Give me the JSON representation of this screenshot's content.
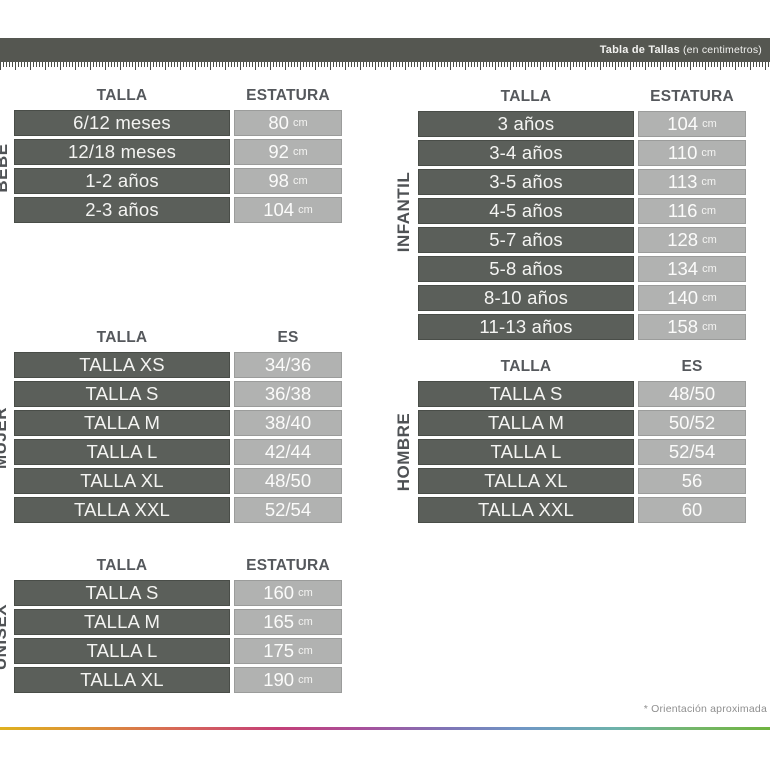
{
  "header": {
    "title": "Tabla de Tallas",
    "subtitle": "(en centimetros)"
  },
  "footnote": "* Orientación aproximada",
  "colors": {
    "topbar_bg": "#555751",
    "dark_cell_bg": "#5b5f5a",
    "light_cell_bg": "#b1b2b1",
    "cell_text": "#f4f4f2",
    "header_text": "#55585c",
    "rainbow_left": "#dfb11e",
    "rainbow_right": "#6fb43f"
  },
  "tables": [
    {
      "id": "bebe",
      "label": "BEBE",
      "col1": "TALLA",
      "col2": "ESTATURA",
      "rows": [
        {
          "size": "6/12 meses",
          "value": "80",
          "unit": "cm"
        },
        {
          "size": "12/18 meses",
          "value": "92",
          "unit": "cm"
        },
        {
          "size": "1-2 años",
          "value": "98",
          "unit": "cm"
        },
        {
          "size": "2-3 años",
          "value": "104",
          "unit": "cm"
        }
      ]
    },
    {
      "id": "infantil",
      "label": "INFANTIL",
      "col1": "TALLA",
      "col2": "ESTATURA",
      "rows": [
        {
          "size": "3 años",
          "value": "104",
          "unit": "cm"
        },
        {
          "size": "3-4 años",
          "value": "110",
          "unit": "cm"
        },
        {
          "size": "3-5 años",
          "value": "113",
          "unit": "cm"
        },
        {
          "size": "4-5 años",
          "value": "116",
          "unit": "cm"
        },
        {
          "size": "5-7 años",
          "value": "128",
          "unit": "cm"
        },
        {
          "size": "5-8 años",
          "value": "134",
          "unit": "cm"
        },
        {
          "size": "8-10 años",
          "value": "140",
          "unit": "cm"
        },
        {
          "size": "11-13 años",
          "value": "158",
          "unit": "cm"
        }
      ]
    },
    {
      "id": "mujer",
      "label": "MUJER",
      "col1": "TALLA",
      "col2": "ES",
      "rows": [
        {
          "size": "TALLA XS",
          "value": "34/36",
          "unit": ""
        },
        {
          "size": "TALLA S",
          "value": "36/38",
          "unit": ""
        },
        {
          "size": "TALLA M",
          "value": "38/40",
          "unit": ""
        },
        {
          "size": "TALLA L",
          "value": "42/44",
          "unit": ""
        },
        {
          "size": "TALLA XL",
          "value": "48/50",
          "unit": ""
        },
        {
          "size": "TALLA XXL",
          "value": "52/54",
          "unit": ""
        }
      ]
    },
    {
      "id": "hombre",
      "label": "HOMBRE",
      "col1": "TALLA",
      "col2": "ES",
      "rows": [
        {
          "size": "TALLA S",
          "value": "48/50",
          "unit": ""
        },
        {
          "size": "TALLA M",
          "value": "50/52",
          "unit": ""
        },
        {
          "size": "TALLA L",
          "value": "52/54",
          "unit": ""
        },
        {
          "size": "TALLA XL",
          "value": "56",
          "unit": ""
        },
        {
          "size": "TALLA XXL",
          "value": "60",
          "unit": ""
        }
      ]
    },
    {
      "id": "unisex",
      "label": "UNISEX",
      "col1": "TALLA",
      "col2": "ESTATURA",
      "rows": [
        {
          "size": "TALLA S",
          "value": "160",
          "unit": "cm"
        },
        {
          "size": "TALLA M",
          "value": "165",
          "unit": "cm"
        },
        {
          "size": "TALLA L",
          "value": "175",
          "unit": "cm"
        },
        {
          "size": "TALLA XL",
          "value": "190",
          "unit": "cm"
        }
      ]
    }
  ],
  "chart_data": [
    {
      "type": "table",
      "title": "BEBE",
      "columns": [
        "TALLA",
        "ESTATURA"
      ],
      "rows": [
        [
          "6/12 meses",
          "80 cm"
        ],
        [
          "12/18 meses",
          "92 cm"
        ],
        [
          "1-2 años",
          "98 cm"
        ],
        [
          "2-3 años",
          "104 cm"
        ]
      ]
    },
    {
      "type": "table",
      "title": "INFANTIL",
      "columns": [
        "TALLA",
        "ESTATURA"
      ],
      "rows": [
        [
          "3 años",
          "104 cm"
        ],
        [
          "3-4 años",
          "110 cm"
        ],
        [
          "3-5 años",
          "113 cm"
        ],
        [
          "4-5 años",
          "116 cm"
        ],
        [
          "5-7 años",
          "128 cm"
        ],
        [
          "5-8 años",
          "134 cm"
        ],
        [
          "8-10 años",
          "140 cm"
        ],
        [
          "11-13 años",
          "158 cm"
        ]
      ]
    },
    {
      "type": "table",
      "title": "MUJER",
      "columns": [
        "TALLA",
        "ES"
      ],
      "rows": [
        [
          "TALLA XS",
          "34/36"
        ],
        [
          "TALLA S",
          "36/38"
        ],
        [
          "TALLA M",
          "38/40"
        ],
        [
          "TALLA L",
          "42/44"
        ],
        [
          "TALLA XL",
          "48/50"
        ],
        [
          "TALLA XXL",
          "52/54"
        ]
      ]
    },
    {
      "type": "table",
      "title": "HOMBRE",
      "columns": [
        "TALLA",
        "ES"
      ],
      "rows": [
        [
          "TALLA S",
          "48/50"
        ],
        [
          "TALLA M",
          "50/52"
        ],
        [
          "TALLA L",
          "52/54"
        ],
        [
          "TALLA XL",
          "56"
        ],
        [
          "TALLA XXL",
          "60"
        ]
      ]
    },
    {
      "type": "table",
      "title": "UNISEX",
      "columns": [
        "TALLA",
        "ESTATURA"
      ],
      "rows": [
        [
          "TALLA S",
          "160 cm"
        ],
        [
          "TALLA M",
          "165 cm"
        ],
        [
          "TALLA L",
          "175 cm"
        ],
        [
          "TALLA XL",
          "190 cm"
        ]
      ]
    }
  ]
}
